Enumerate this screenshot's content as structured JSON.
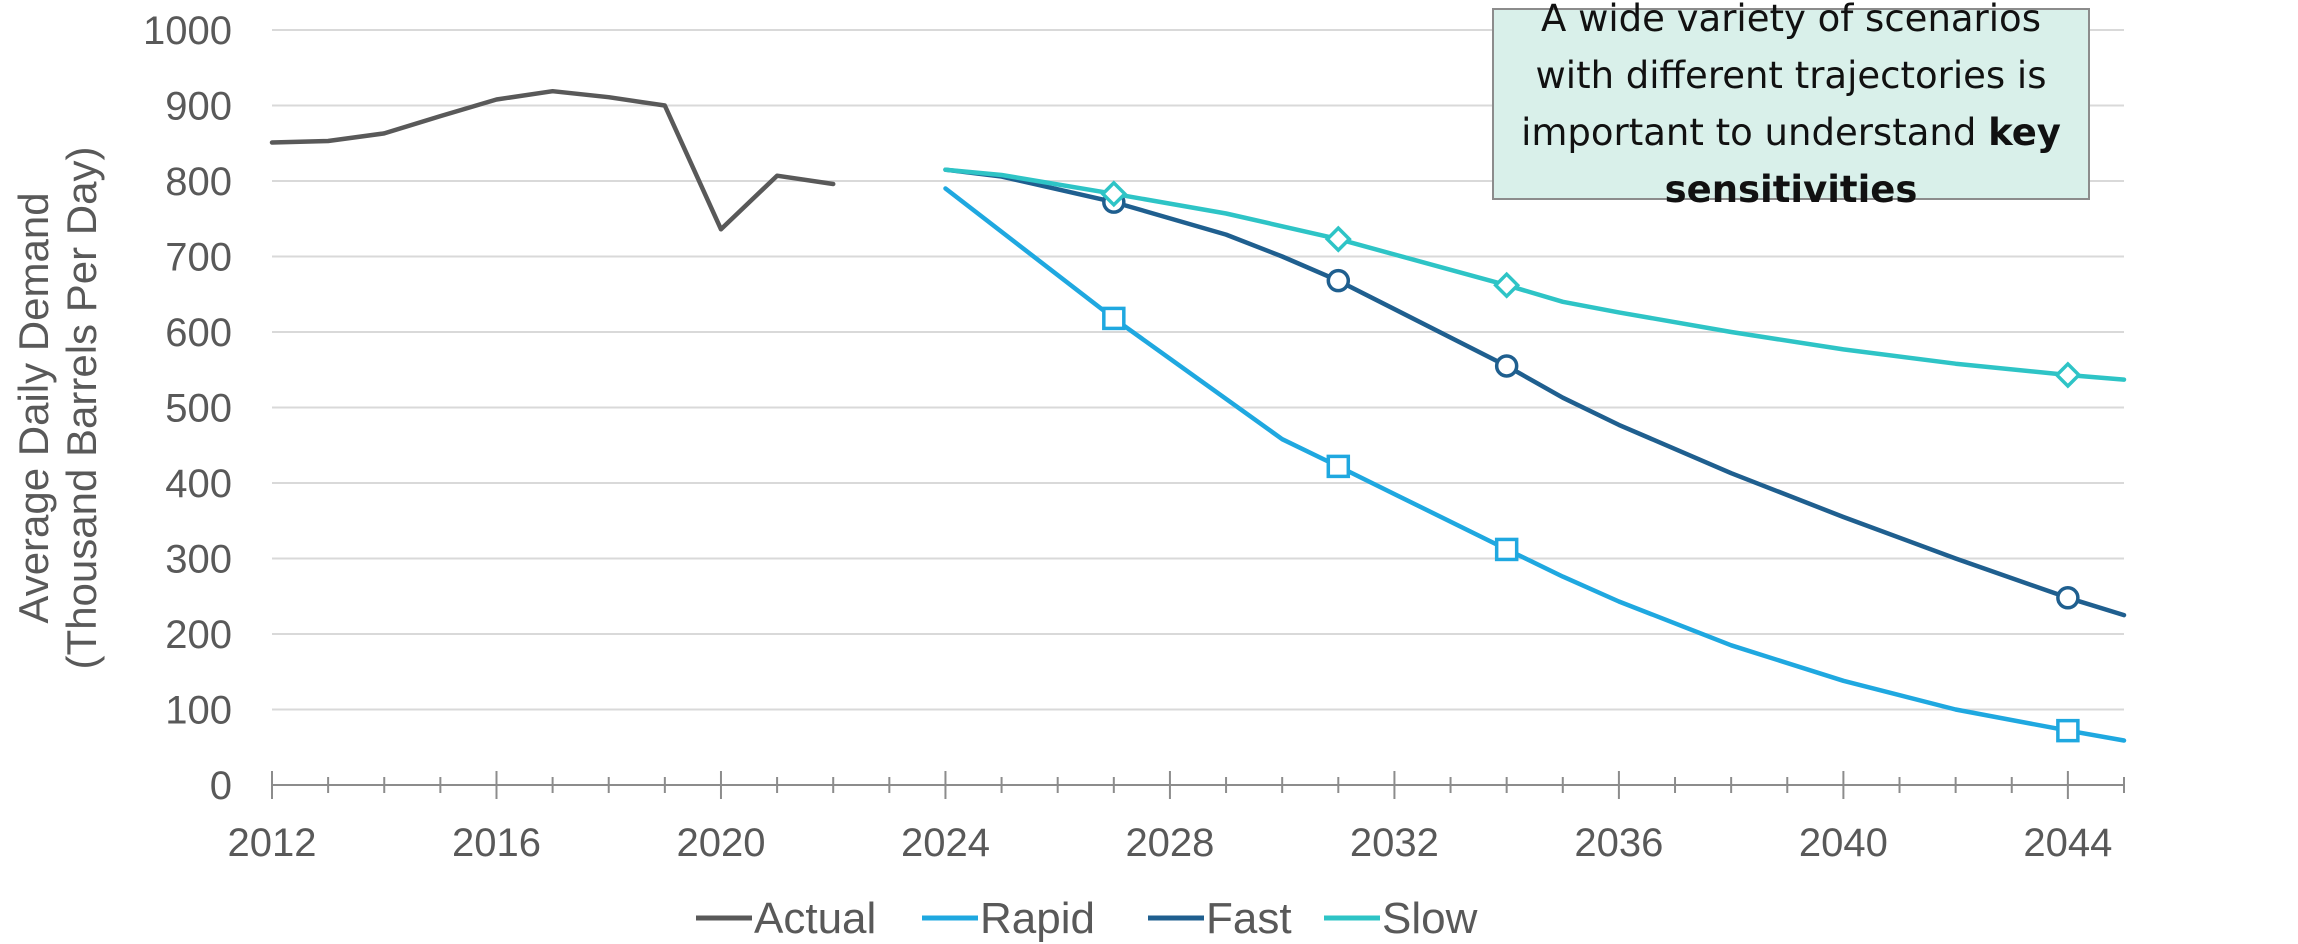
{
  "chart_data": {
    "type": "line",
    "title": "",
    "ylabel_line1": "Average Daily Demand",
    "ylabel_line2": "(Thousand Barrels Per Day)",
    "xlabel": "",
    "xlim": [
      2012,
      2045
    ],
    "ylim": [
      0,
      1000
    ],
    "x_ticks": [
      2012,
      2016,
      2020,
      2024,
      2028,
      2032,
      2036,
      2040,
      2044
    ],
    "y_ticks": [
      0,
      100,
      200,
      300,
      400,
      500,
      600,
      700,
      800,
      900,
      1000
    ],
    "grid": "horizontal",
    "legend_position": "bottom",
    "series": [
      {
        "name": "Actual",
        "color": "#595959",
        "marker": "none",
        "x": [
          2012,
          2013,
          2014,
          2015,
          2016,
          2017,
          2018,
          2019,
          2020,
          2021,
          2022
        ],
        "y": [
          851,
          853,
          863,
          886,
          908,
          919,
          911,
          900,
          736,
          807,
          796
        ]
      },
      {
        "name": "Rapid",
        "color": "#1fa8e0",
        "marker": "square",
        "x": [
          2024,
          2027,
          2030,
          2031,
          2034,
          2035,
          2036,
          2038,
          2040,
          2042,
          2044,
          2045
        ],
        "y": [
          790,
          618,
          458,
          422,
          312,
          276,
          243,
          185,
          138,
          100,
          72,
          59
        ],
        "marker_x": [
          2027,
          2031,
          2034,
          2044
        ],
        "marker_y": [
          618,
          422,
          312,
          72
        ]
      },
      {
        "name": "Fast",
        "color": "#1f5f8f",
        "marker": "circle",
        "x": [
          2024,
          2025,
          2027,
          2029,
          2030,
          2031,
          2034,
          2035,
          2036,
          2038,
          2040,
          2042,
          2044,
          2045
        ],
        "y": [
          815,
          806,
          772,
          729,
          700,
          668,
          555,
          513,
          477,
          413,
          355,
          300,
          248,
          225
        ],
        "marker_x": [
          2027,
          2031,
          2034,
          2044
        ],
        "marker_y": [
          772,
          668,
          555,
          248
        ]
      },
      {
        "name": "Slow",
        "color": "#2ec4c6",
        "marker": "diamond",
        "x": [
          2024,
          2025,
          2027,
          2029,
          2031,
          2034,
          2035,
          2036,
          2038,
          2040,
          2042,
          2044,
          2045
        ],
        "y": [
          815,
          808,
          783,
          757,
          723,
          662,
          640,
          626,
          600,
          577,
          558,
          543,
          537
        ],
        "marker_x": [
          2027,
          2031,
          2034,
          2044
        ],
        "marker_y": [
          783,
          723,
          662,
          543
        ]
      }
    ]
  },
  "callout": {
    "text_prefix": "A wide variety of scenarios with different trajectories is important to understand ",
    "text_bold": "key sensitivities",
    "background": "#d9f0ea"
  }
}
